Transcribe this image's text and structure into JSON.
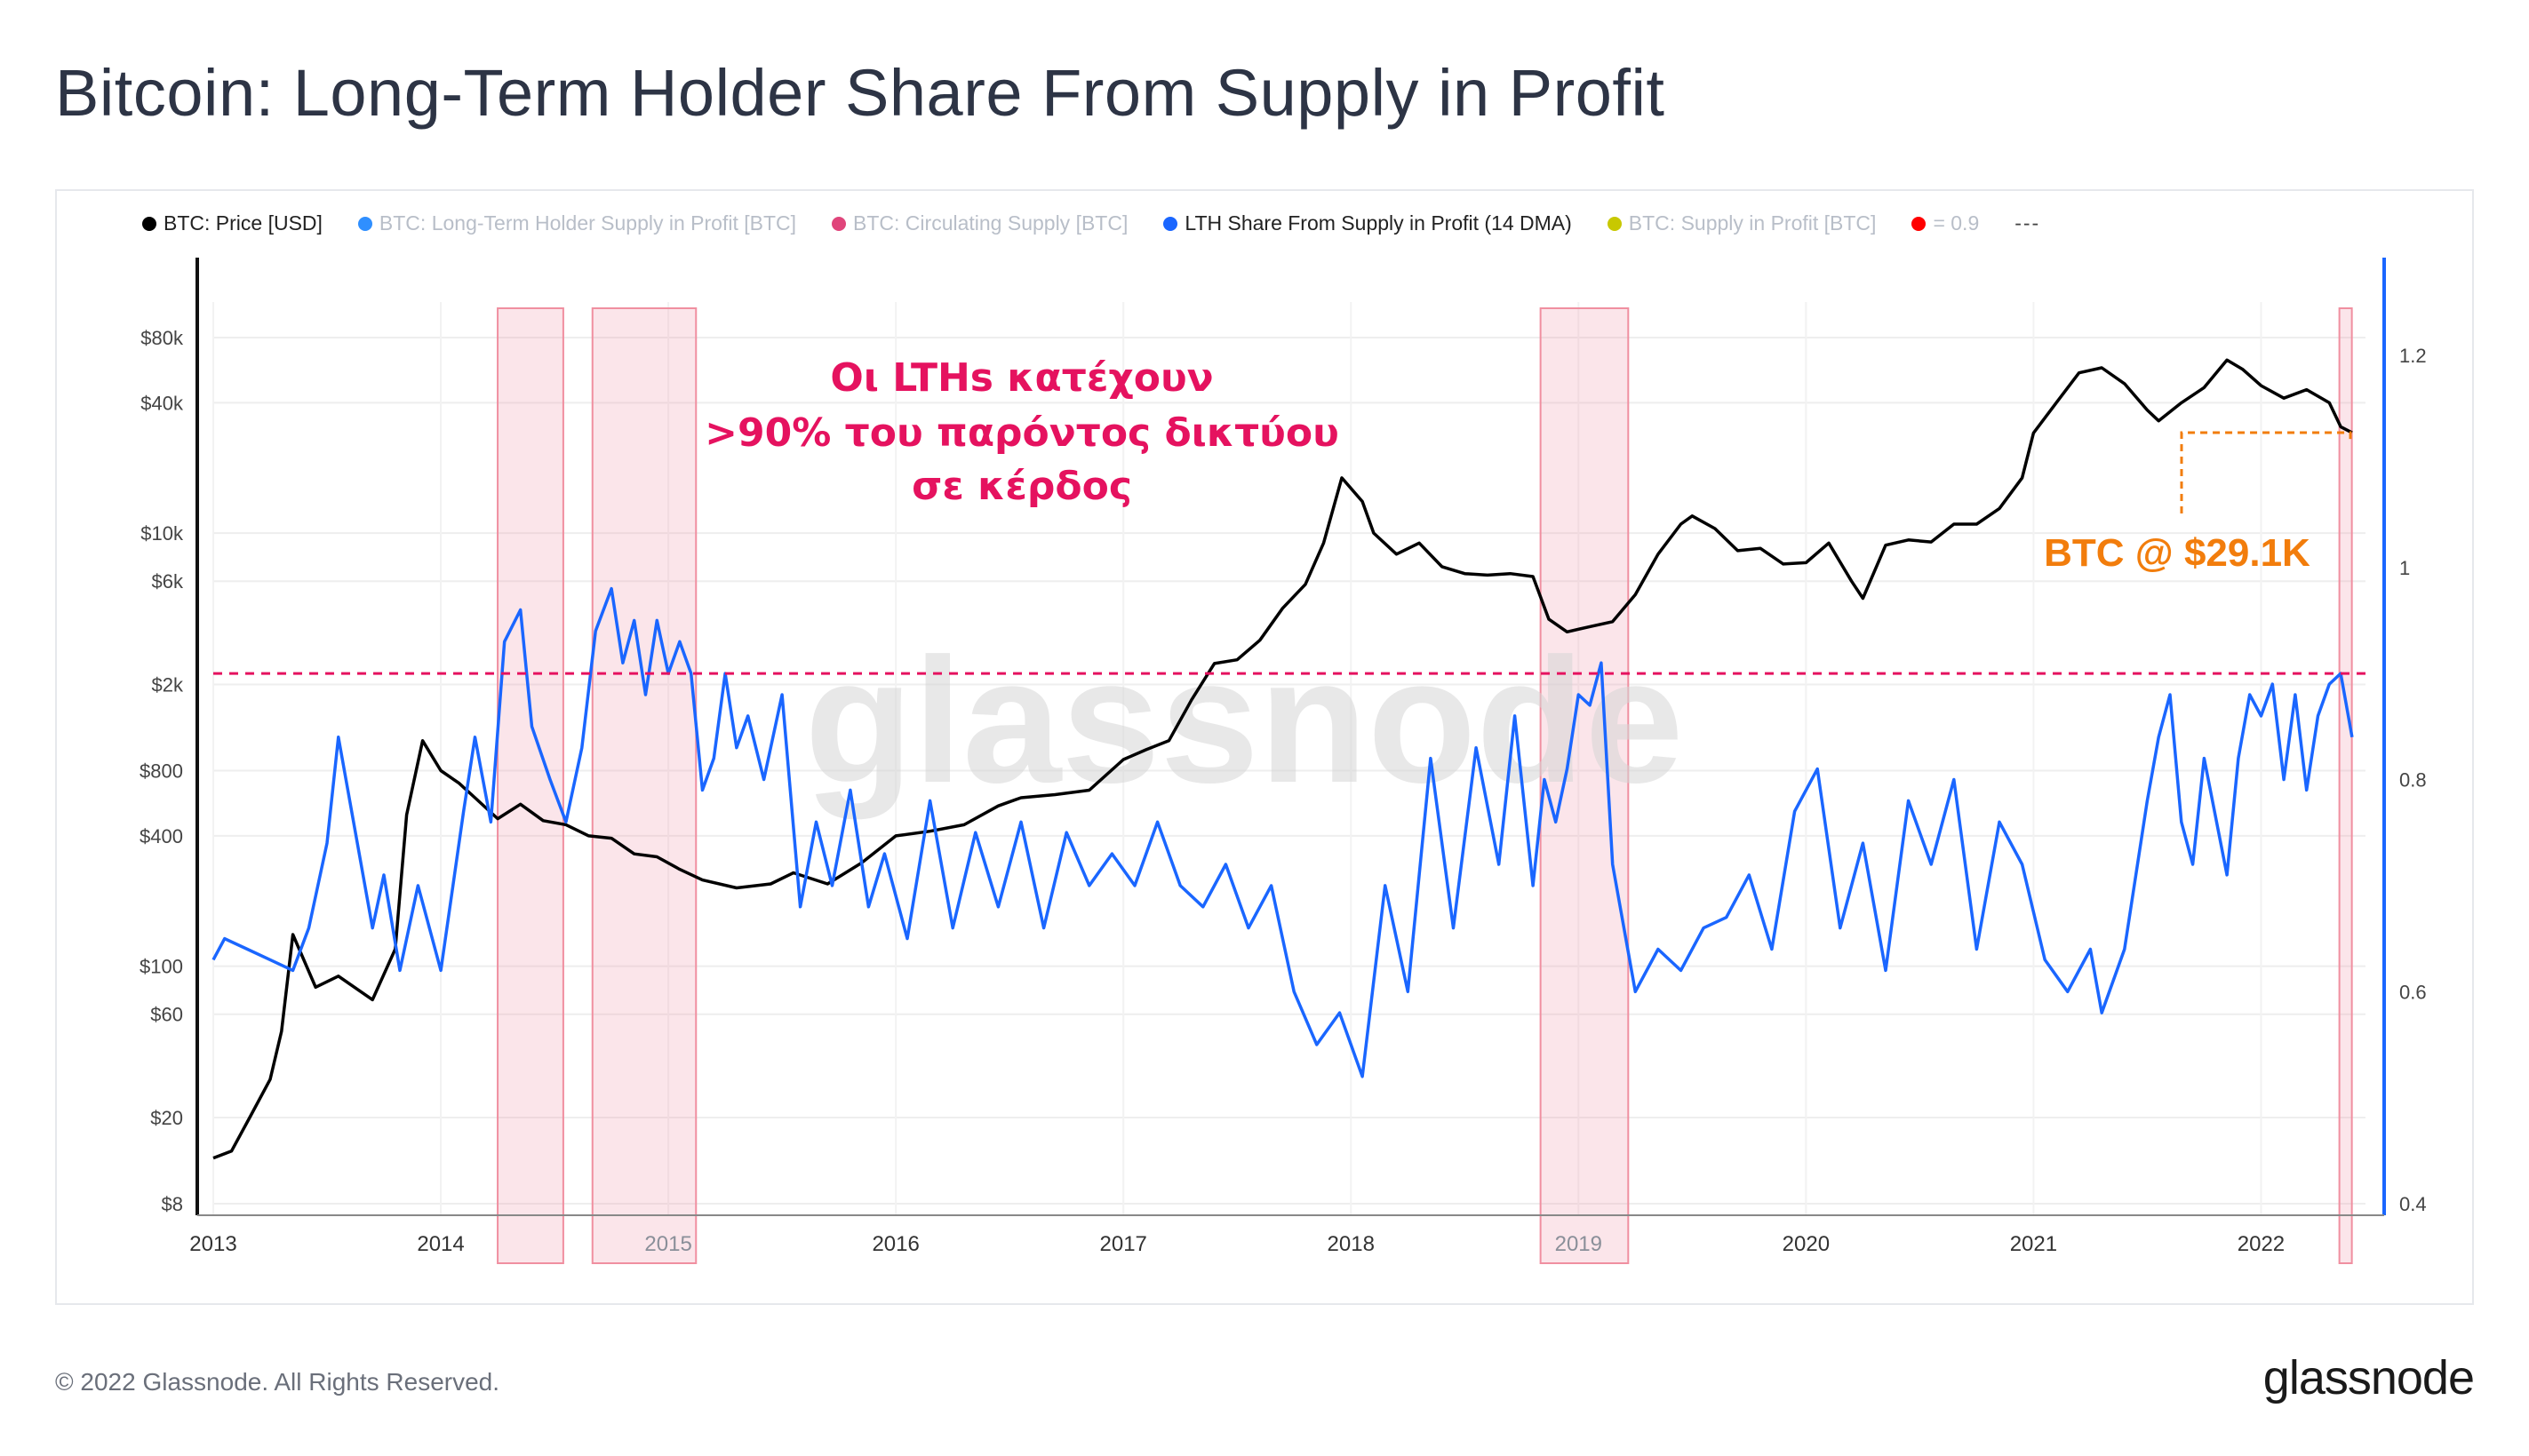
{
  "title": "Bitcoin: Long-Term Holder Share From Supply in Profit",
  "legend": [
    {
      "label": "BTC: Price [USD]",
      "color": "#000000",
      "active": true
    },
    {
      "label": "BTC: Long-Term Holder Supply in Profit [BTC]",
      "color": "#2f8fff",
      "active": false
    },
    {
      "label": "BTC: Circulating Supply [BTC]",
      "color": "#e0457b",
      "active": false
    },
    {
      "label": "LTH Share From Supply in Profit (14 DMA)",
      "color": "#1a66ff",
      "active": true
    },
    {
      "label": "BTC: Supply in Profit [BTC]",
      "color": "#c8c800",
      "active": false
    },
    {
      "label": "= 0.9",
      "color": "#ff0000",
      "active": false
    },
    {
      "label": "---",
      "color": "",
      "active": true
    }
  ],
  "annotation": {
    "lines": [
      "Οι LTHs κατέχουν",
      ">90% του παρόντος δικτύου",
      "σε κέρδος"
    ],
    "color": "#e5125f"
  },
  "price_callout": {
    "label": "BTC @ $29.1K",
    "color": "#f27d0c"
  },
  "watermark": "glassnode",
  "footer": "© 2022 Glassnode. All Rights Reserved.",
  "brand": "glassnode",
  "chart_data": {
    "type": "line",
    "x_ticks": [
      "2013",
      "2014",
      "2015",
      "2016",
      "2017",
      "2018",
      "2019",
      "2020",
      "2021",
      "2022"
    ],
    "y_left": {
      "scale": "log",
      "ticks": [
        "$8",
        "$20",
        "$60",
        "$100",
        "$400",
        "$800",
        "$2k",
        "$6k",
        "$10k",
        "$40k",
        "$80k"
      ],
      "tick_values": [
        8,
        20,
        60,
        100,
        400,
        800,
        2000,
        6000,
        10000,
        40000,
        80000
      ]
    },
    "y_right": {
      "scale": "linear",
      "ticks": [
        "0.4",
        "0.6",
        "0.8",
        "1",
        "1.2"
      ],
      "tick_values": [
        0.4,
        0.6,
        0.8,
        1.0,
        1.2
      ]
    },
    "threshold": 0.9,
    "highlight_ranges": [
      [
        "2014-04-01",
        "2014-07-15"
      ],
      [
        "2014-09-01",
        "2015-02-15"
      ],
      [
        "2018-11-01",
        "2019-03-20"
      ],
      [
        "2022-05-05",
        "2022-05-25"
      ]
    ],
    "series": [
      {
        "name": "BTC: Price [USD]",
        "color": "#000000",
        "axis": "left",
        "x": [
          2013.0,
          2013.08,
          2013.16,
          2013.25,
          2013.3,
          2013.35,
          2013.45,
          2013.55,
          2013.7,
          2013.8,
          2013.85,
          2013.92,
          2014.0,
          2014.08,
          2014.15,
          2014.25,
          2014.35,
          2014.45,
          2014.55,
          2014.65,
          2014.75,
          2014.85,
          2014.95,
          2015.05,
          2015.15,
          2015.3,
          2015.45,
          2015.55,
          2015.7,
          2015.85,
          2016.0,
          2016.15,
          2016.3,
          2016.45,
          2016.55,
          2016.7,
          2016.85,
          2017.0,
          2017.1,
          2017.2,
          2017.3,
          2017.4,
          2017.5,
          2017.6,
          2017.7,
          2017.8,
          2017.88,
          2017.96,
          2018.05,
          2018.1,
          2018.2,
          2018.3,
          2018.4,
          2018.5,
          2018.6,
          2018.7,
          2018.8,
          2018.87,
          2018.95,
          2019.05,
          2019.15,
          2019.25,
          2019.35,
          2019.45,
          2019.5,
          2019.6,
          2019.7,
          2019.8,
          2019.9,
          2020.0,
          2020.1,
          2020.2,
          2020.25,
          2020.35,
          2020.45,
          2020.55,
          2020.65,
          2020.75,
          2020.85,
          2020.95,
          2021.0,
          2021.1,
          2021.2,
          2021.3,
          2021.4,
          2021.5,
          2021.55,
          2021.65,
          2021.75,
          2021.85,
          2021.92,
          2022.0,
          2022.1,
          2022.2,
          2022.3,
          2022.35,
          2022.4
        ],
        "y": [
          13,
          14,
          20,
          30,
          50,
          140,
          80,
          90,
          70,
          120,
          500,
          1100,
          800,
          700,
          600,
          480,
          560,
          470,
          450,
          400,
          390,
          330,
          320,
          280,
          250,
          230,
          240,
          270,
          240,
          300,
          400,
          420,
          450,
          550,
          600,
          620,
          650,
          900,
          1000,
          1100,
          1700,
          2500,
          2600,
          3200,
          4500,
          5800,
          9000,
          18000,
          14000,
          10000,
          8000,
          9000,
          7000,
          6500,
          6400,
          6500,
          6300,
          4000,
          3500,
          3700,
          3900,
          5200,
          8000,
          11000,
          12000,
          10500,
          8300,
          8500,
          7200,
          7300,
          9000,
          6000,
          5000,
          8800,
          9300,
          9100,
          11000,
          11000,
          13000,
          18000,
          29000,
          40000,
          55000,
          58000,
          49000,
          37000,
          33000,
          40000,
          47000,
          63000,
          57000,
          48000,
          42000,
          46000,
          40000,
          31000,
          29100
        ]
      },
      {
        "name": "LTH Share From Supply in Profit (14 DMA)",
        "color": "#1a66ff",
        "axis": "right",
        "x": [
          2013.0,
          2013.05,
          2013.15,
          2013.25,
          2013.35,
          2013.42,
          2013.5,
          2013.55,
          2013.6,
          2013.7,
          2013.75,
          2013.82,
          2013.9,
          2014.0,
          2014.1,
          2014.15,
          2014.22,
          2014.28,
          2014.35,
          2014.4,
          2014.48,
          2014.55,
          2014.62,
          2014.68,
          2014.75,
          2014.8,
          2014.85,
          2014.9,
          2014.95,
          2015.0,
          2015.05,
          2015.1,
          2015.15,
          2015.2,
          2015.25,
          2015.3,
          2015.35,
          2015.42,
          2015.5,
          2015.58,
          2015.65,
          2015.72,
          2015.8,
          2015.88,
          2015.95,
          2016.05,
          2016.15,
          2016.25,
          2016.35,
          2016.45,
          2016.55,
          2016.65,
          2016.75,
          2016.85,
          2016.95,
          2017.05,
          2017.15,
          2017.25,
          2017.35,
          2017.45,
          2017.55,
          2017.65,
          2017.75,
          2017.85,
          2017.95,
          2018.05,
          2018.15,
          2018.25,
          2018.35,
          2018.45,
          2018.55,
          2018.65,
          2018.72,
          2018.8,
          2018.85,
          2018.9,
          2018.95,
          2019.0,
          2019.05,
          2019.1,
          2019.15,
          2019.25,
          2019.35,
          2019.45,
          2019.55,
          2019.65,
          2019.75,
          2019.85,
          2019.95,
          2020.05,
          2020.15,
          2020.25,
          2020.35,
          2020.45,
          2020.55,
          2020.65,
          2020.75,
          2020.85,
          2020.95,
          2021.05,
          2021.15,
          2021.25,
          2021.3,
          2021.4,
          2021.5,
          2021.55,
          2021.6,
          2021.65,
          2021.7,
          2021.75,
          2021.85,
          2021.9,
          2021.95,
          2022.0,
          2022.05,
          2022.1,
          2022.15,
          2022.2,
          2022.25,
          2022.3,
          2022.35,
          2022.4
        ],
        "y": [
          0.63,
          0.65,
          0.64,
          0.63,
          0.62,
          0.66,
          0.74,
          0.84,
          0.78,
          0.66,
          0.71,
          0.62,
          0.7,
          0.62,
          0.77,
          0.84,
          0.76,
          0.93,
          0.96,
          0.85,
          0.8,
          0.76,
          0.83,
          0.94,
          0.98,
          0.91,
          0.95,
          0.88,
          0.95,
          0.9,
          0.93,
          0.9,
          0.79,
          0.82,
          0.9,
          0.83,
          0.86,
          0.8,
          0.88,
          0.68,
          0.76,
          0.7,
          0.79,
          0.68,
          0.73,
          0.65,
          0.78,
          0.66,
          0.75,
          0.68,
          0.76,
          0.66,
          0.75,
          0.7,
          0.73,
          0.7,
          0.76,
          0.7,
          0.68,
          0.72,
          0.66,
          0.7,
          0.6,
          0.55,
          0.58,
          0.52,
          0.7,
          0.6,
          0.82,
          0.66,
          0.83,
          0.72,
          0.86,
          0.7,
          0.8,
          0.76,
          0.81,
          0.88,
          0.87,
          0.91,
          0.72,
          0.6,
          0.64,
          0.62,
          0.66,
          0.67,
          0.71,
          0.64,
          0.77,
          0.81,
          0.66,
          0.74,
          0.62,
          0.78,
          0.72,
          0.8,
          0.64,
          0.76,
          0.72,
          0.63,
          0.6,
          0.64,
          0.58,
          0.64,
          0.78,
          0.84,
          0.88,
          0.76,
          0.72,
          0.82,
          0.71,
          0.82,
          0.88,
          0.86,
          0.89,
          0.8,
          0.88,
          0.79,
          0.86,
          0.89,
          0.9,
          0.84
        ]
      }
    ],
    "callout_price": 29100
  }
}
